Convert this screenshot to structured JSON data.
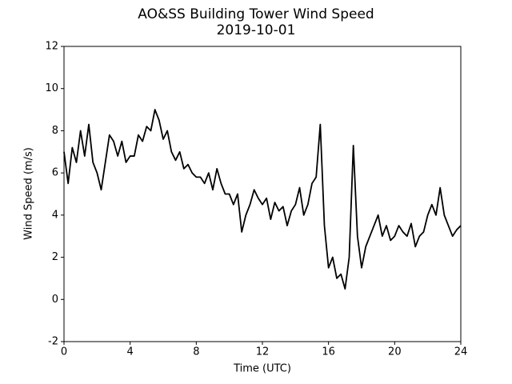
{
  "chart_data": {
    "type": "line",
    "title": "AO&SS Building Tower Wind Speed",
    "subtitle": "2019-10-01",
    "x_label": "Time (UTC)",
    "y_label": "Wind Speed (m/s)",
    "xlim": [
      0,
      24
    ],
    "xticks": [
      0,
      4,
      8,
      12,
      16,
      20,
      24
    ],
    "ylim": [
      -2,
      12
    ],
    "yticks": [
      -2,
      0,
      2,
      4,
      6,
      8,
      10,
      12
    ],
    "grid": false,
    "x": [
      0,
      0.25,
      0.5,
      0.75,
      1,
      1.25,
      1.5,
      1.75,
      2,
      2.25,
      2.5,
      2.75,
      3,
      3.25,
      3.5,
      3.75,
      4,
      4.25,
      4.5,
      4.75,
      5,
      5.25,
      5.5,
      5.75,
      6,
      6.25,
      6.5,
      6.75,
      7,
      7.25,
      7.5,
      7.75,
      8,
      8.25,
      8.5,
      8.75,
      9,
      9.25,
      9.5,
      9.75,
      10,
      10.25,
      10.5,
      10.75,
      11,
      11.25,
      11.5,
      11.75,
      12,
      12.25,
      12.5,
      12.75,
      13,
      13.25,
      13.5,
      13.75,
      14,
      14.25,
      14.5,
      14.75,
      15,
      15.25,
      15.5,
      15.75,
      16,
      16.25,
      16.5,
      16.75,
      17,
      17.25,
      17.5,
      17.75,
      18,
      18.25,
      18.5,
      18.75,
      19,
      19.25,
      19.5,
      19.75,
      20,
      20.25,
      20.5,
      20.75,
      21,
      21.25,
      21.5,
      21.75,
      22,
      22.25,
      22.5,
      22.75,
      23,
      23.25,
      23.5,
      23.75,
      24
    ],
    "series": [
      {
        "color": "#000000",
        "values": [
          7.0,
          5.5,
          7.2,
          6.5,
          8.0,
          6.8,
          8.3,
          6.5,
          6.0,
          5.2,
          6.5,
          7.8,
          7.5,
          6.8,
          7.5,
          6.5,
          6.8,
          6.8,
          7.8,
          7.5,
          8.2,
          8.0,
          9.0,
          8.5,
          7.6,
          8.0,
          7.0,
          6.6,
          7.0,
          6.2,
          6.4,
          6.0,
          5.8,
          5.8,
          5.5,
          6.0,
          5.2,
          6.2,
          5.5,
          5.0,
          5.0,
          4.5,
          5.0,
          3.2,
          4.0,
          4.5,
          5.2,
          4.8,
          4.5,
          4.8,
          3.8,
          4.6,
          4.2,
          4.4,
          3.5,
          4.2,
          4.5,
          5.3,
          4.0,
          4.5,
          5.5,
          5.8,
          8.3,
          3.5,
          1.5,
          2.0,
          1.0,
          1.2,
          0.5,
          2.0,
          7.3,
          3.0,
          1.5,
          2.5,
          3.0,
          3.5,
          4.0,
          3.0,
          3.5,
          2.8,
          3.0,
          3.5,
          3.2,
          3.0,
          3.6,
          2.5,
          3.0,
          3.2,
          4.0,
          4.5,
          4.0,
          5.3,
          4.0,
          3.5,
          3.0,
          3.3,
          3.5
        ]
      }
    ]
  }
}
